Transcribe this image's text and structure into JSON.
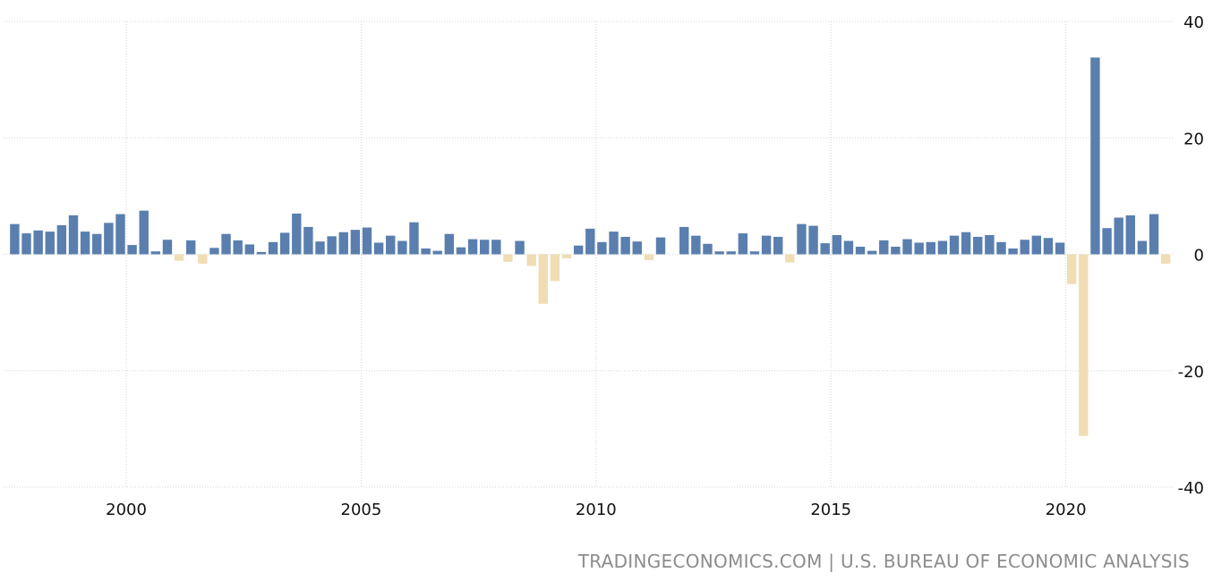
{
  "chart_data": {
    "type": "bar",
    "title": "",
    "xlabel": "",
    "ylabel": "",
    "ylim": [
      -40,
      40
    ],
    "x_ticks": [
      "2000",
      "2005",
      "2010",
      "2015",
      "2020"
    ],
    "y_ticks": [
      40,
      20,
      0,
      -20,
      -40
    ],
    "y_axis_position": "right",
    "grid": true,
    "x_start": "1997 Q3",
    "colors": {
      "positive": "#5a7fae",
      "negative": "#f0ddb4"
    },
    "values": [
      5.2,
      3.6,
      4.1,
      3.9,
      5.0,
      6.7,
      3.9,
      3.5,
      5.4,
      6.9,
      1.6,
      7.5,
      0.5,
      2.5,
      -1.1,
      2.4,
      -1.6,
      1.1,
      3.5,
      2.4,
      1.7,
      0.4,
      2.1,
      3.7,
      7.0,
      4.7,
      2.2,
      3.1,
      3.8,
      4.2,
      4.6,
      2.0,
      3.2,
      2.3,
      5.5,
      1.0,
      0.6,
      3.5,
      1.2,
      2.6,
      2.5,
      2.5,
      -1.3,
      2.3,
      -2.0,
      -8.5,
      -4.6,
      -0.7,
      1.5,
      4.4,
      2.1,
      3.9,
      3.0,
      2.2,
      -1.0,
      2.9,
      0.0,
      4.7,
      3.2,
      1.8,
      0.5,
      0.5,
      3.6,
      0.5,
      3.2,
      3.0,
      -1.4,
      5.2,
      4.9,
      1.9,
      3.3,
      2.3,
      1.3,
      0.6,
      2.4,
      1.3,
      2.6,
      2.0,
      2.1,
      2.3,
      3.2,
      3.8,
      3.0,
      3.3,
      2.1,
      1.0,
      2.5,
      3.2,
      2.8,
      2.0,
      -5.1,
      -31.2,
      33.8,
      4.5,
      6.3,
      6.7,
      2.3,
      6.9,
      -1.6
    ]
  },
  "source": "TRADINGECONOMICS.COM | U.S. BUREAU OF ECONOMIC ANALYSIS"
}
